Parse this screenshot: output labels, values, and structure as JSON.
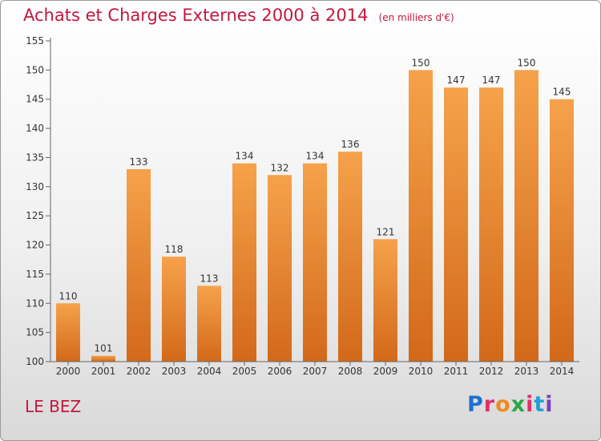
{
  "header": {
    "title": "Achats et Charges Externes 2000 à 2014",
    "subtitle": "(en milliers d'€)"
  },
  "footer": {
    "place": "LE BEZ",
    "logo": {
      "text": "Proxiti",
      "letter_colors": [
        "#1f6fd1",
        "#e0306a",
        "#f08b1f",
        "#2aa64a",
        "#e0306a",
        "#1f9fd8",
        "#7a3fc4"
      ]
    }
  },
  "chart_data": {
    "type": "bar",
    "categories": [
      "2000",
      "2001",
      "2002",
      "2003",
      "2004",
      "2005",
      "2006",
      "2007",
      "2008",
      "2009",
      "2010",
      "2011",
      "2012",
      "2013",
      "2014"
    ],
    "values": [
      110,
      101,
      133,
      118,
      113,
      134,
      132,
      134,
      136,
      121,
      150,
      147,
      147,
      150,
      145
    ],
    "data_labels": [
      "110",
      "101",
      "133",
      "118",
      "113",
      "134",
      "132",
      "134",
      "136",
      "121",
      "150",
      "147",
      "147",
      "150",
      "145"
    ],
    "ylim": [
      100,
      155
    ],
    "yticks": [
      100,
      105,
      110,
      115,
      120,
      125,
      130,
      135,
      140,
      145,
      150,
      155
    ],
    "xlabel": "",
    "ylabel": "",
    "grid": false,
    "colors": {
      "bar_top": "#f6a24b",
      "bar_bottom": "#d2691a",
      "text": "#333333",
      "axis": "#666666"
    }
  }
}
